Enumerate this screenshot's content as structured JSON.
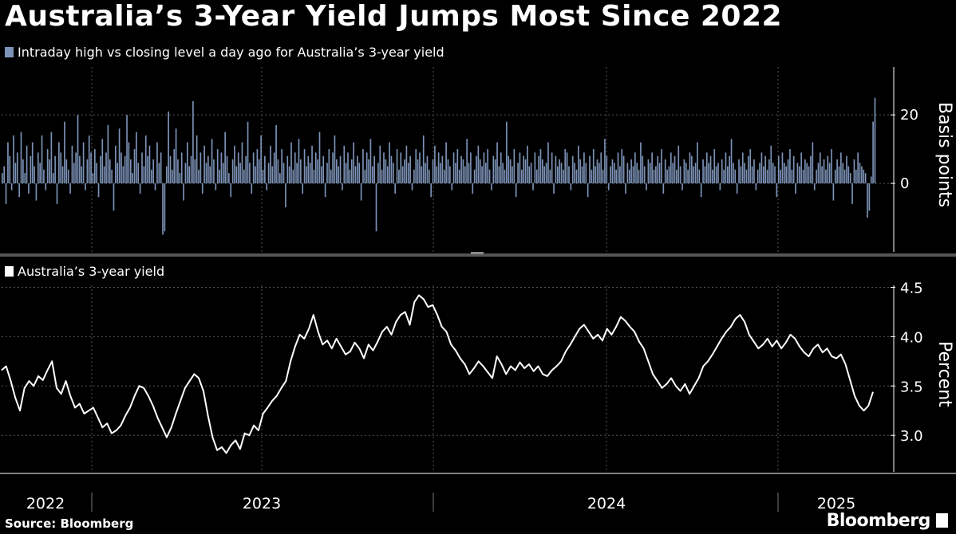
{
  "title": "Australia’s 3-Year Yield Jumps Most Since 2022",
  "source": "Source: Bloomberg",
  "brand": "Bloomberg",
  "colors": {
    "background": "#000000",
    "bars": "#7c93b8",
    "line": "#ffffff",
    "grid": "#555555"
  },
  "chart_data": [
    {
      "type": "bar",
      "legend": "Intraday high vs closing level a day ago for Australia’s 3-year yield",
      "ylabel": "Basis points",
      "yticks": [
        0,
        20
      ],
      "ylim": [
        -20,
        34
      ],
      "grid": true,
      "x_start": "2022-01",
      "x_end": "2025-03",
      "values": [
        3,
        5,
        -6,
        12,
        8,
        -2,
        14,
        6,
        9,
        -4,
        15,
        7,
        3,
        11,
        -3,
        8,
        12,
        5,
        -5,
        9,
        6,
        14,
        4,
        -2,
        10,
        7,
        15,
        3,
        8,
        -6,
        12,
        9,
        5,
        18,
        7,
        4,
        -3,
        11,
        6,
        9,
        20,
        8,
        5,
        12,
        -2,
        7,
        14,
        9,
        3,
        10,
        6,
        -4,
        8,
        13,
        5,
        9,
        17,
        7,
        4,
        -8,
        11,
        6,
        16,
        9,
        5,
        8,
        20,
        12,
        7,
        3,
        10,
        15,
        6,
        -3,
        9,
        5,
        14,
        8,
        11,
        4,
        7,
        -2,
        12,
        6,
        9,
        -15,
        -14,
        5,
        21,
        8,
        4,
        10,
        16,
        7,
        3,
        9,
        -5,
        6,
        12,
        5,
        8,
        24,
        7,
        14,
        4,
        9,
        -3,
        11,
        6,
        8,
        5,
        13,
        7,
        -2,
        10,
        4,
        9,
        6,
        15,
        8,
        3,
        -4,
        7,
        11,
        5,
        9,
        6,
        12,
        4,
        8,
        18,
        6,
        -3,
        9,
        5,
        10,
        7,
        14,
        4,
        8,
        -2,
        6,
        11,
        5,
        9,
        17,
        7,
        3,
        10,
        6,
        -7,
        8,
        5,
        12,
        4,
        9,
        6,
        13,
        7,
        -3,
        10,
        5,
        8,
        6,
        11,
        4,
        9,
        7,
        15,
        5,
        8,
        -4,
        6,
        10,
        4,
        9,
        14,
        7,
        5,
        8,
        -2,
        11,
        6,
        9,
        4,
        7,
        12,
        5,
        8,
        6,
        -5,
        10,
        4,
        9,
        7,
        13,
        5,
        8,
        -14,
        6,
        11,
        4,
        9,
        7,
        5,
        12,
        8,
        6,
        -3,
        10,
        4,
        9,
        5,
        7,
        11,
        6,
        8,
        -2,
        4,
        10,
        7,
        9,
        5,
        14,
        6,
        8,
        4,
        -4,
        7,
        11,
        5,
        9,
        6,
        8,
        4,
        12,
        7,
        5,
        -2,
        9,
        6,
        10,
        4,
        8,
        7,
        5,
        13,
        6,
        9,
        -3,
        4,
        8,
        11,
        7,
        5,
        9,
        6,
        10,
        4,
        -2,
        8,
        7,
        12,
        5,
        9,
        6,
        4,
        18,
        8,
        7,
        5,
        10,
        -4,
        6,
        9,
        4,
        8,
        7,
        11,
        5,
        6,
        -2,
        9,
        4,
        8,
        10,
        7,
        5,
        6,
        12,
        4,
        9,
        -3,
        8,
        5,
        7,
        6,
        4,
        10,
        9,
        5,
        -2,
        8,
        6,
        4,
        11,
        7,
        5,
        9,
        6,
        -4,
        8,
        4,
        10,
        5,
        7,
        6,
        9,
        4,
        13,
        8,
        -2,
        5,
        7,
        6,
        4,
        9,
        5,
        10,
        8,
        -3,
        6,
        4,
        7,
        5,
        9,
        6,
        4,
        12,
        8,
        5,
        -2,
        7,
        6,
        9,
        4,
        5,
        8,
        6,
        10,
        -3,
        7,
        4,
        5,
        9,
        6,
        8,
        4,
        11,
        5,
        -2,
        7,
        6,
        4,
        9,
        8,
        5,
        6,
        12,
        4,
        -4,
        7,
        5,
        9,
        6,
        8,
        4,
        10,
        5,
        6,
        -2,
        7,
        4,
        9,
        5,
        8,
        13,
        6,
        4,
        -3,
        7,
        5,
        9,
        6,
        4,
        8,
        10,
        5,
        7,
        -2,
        4,
        6,
        9,
        5,
        8,
        4,
        7,
        11,
        6,
        5,
        -4,
        8,
        4,
        9,
        6,
        5,
        7,
        10,
        4,
        8,
        -3,
        6,
        5,
        9,
        4,
        7,
        6,
        5,
        8,
        12,
        -2,
        4,
        6,
        9,
        5,
        7,
        4,
        8,
        6,
        10,
        -5,
        4,
        7,
        5,
        9,
        6,
        4,
        8,
        5,
        3,
        -6,
        7,
        4,
        9,
        6,
        5,
        4,
        3,
        -10,
        -8,
        2,
        18,
        25
      ]
    },
    {
      "type": "line",
      "legend": "Australia’s 3-year yield",
      "ylabel": "Percent",
      "yticks": [
        3.0,
        3.5,
        4.0,
        4.5
      ],
      "ylim": [
        2.63,
        4.52
      ],
      "grid": true,
      "x_start": "2022-01",
      "x_end": "2025-03",
      "xticks": [
        "2022",
        "2023",
        "2024",
        "2025"
      ],
      "values": [
        3.66,
        3.7,
        3.55,
        3.38,
        3.25,
        3.48,
        3.55,
        3.5,
        3.6,
        3.56,
        3.66,
        3.75,
        3.48,
        3.42,
        3.55,
        3.4,
        3.28,
        3.32,
        3.22,
        3.25,
        3.28,
        3.18,
        3.08,
        3.12,
        3.02,
        3.05,
        3.1,
        3.2,
        3.28,
        3.4,
        3.5,
        3.48,
        3.4,
        3.3,
        3.18,
        3.08,
        2.98,
        3.08,
        3.22,
        3.35,
        3.48,
        3.55,
        3.62,
        3.58,
        3.45,
        3.2,
        2.98,
        2.85,
        2.88,
        2.82,
        2.9,
        2.95,
        2.86,
        3.02,
        3.0,
        3.1,
        3.05,
        3.22,
        3.28,
        3.35,
        3.4,
        3.48,
        3.55,
        3.75,
        3.9,
        4.02,
        3.98,
        4.08,
        4.22,
        4.05,
        3.92,
        3.96,
        3.88,
        3.98,
        3.9,
        3.82,
        3.85,
        3.94,
        3.88,
        3.78,
        3.92,
        3.86,
        3.95,
        4.05,
        4.1,
        4.02,
        4.15,
        4.22,
        4.25,
        4.12,
        4.35,
        4.42,
        4.38,
        4.3,
        4.32,
        4.22,
        4.1,
        4.05,
        3.92,
        3.86,
        3.78,
        3.72,
        3.62,
        3.68,
        3.75,
        3.7,
        3.64,
        3.58,
        3.8,
        3.72,
        3.62,
        3.7,
        3.66,
        3.74,
        3.68,
        3.72,
        3.65,
        3.7,
        3.62,
        3.6,
        3.66,
        3.7,
        3.75,
        3.85,
        3.92,
        4.0,
        4.08,
        4.12,
        4.05,
        3.98,
        4.02,
        3.96,
        4.08,
        4.02,
        4.1,
        4.2,
        4.16,
        4.1,
        4.05,
        3.95,
        3.88,
        3.75,
        3.62,
        3.55,
        3.48,
        3.52,
        3.58,
        3.5,
        3.45,
        3.52,
        3.42,
        3.5,
        3.58,
        3.7,
        3.75,
        3.82,
        3.9,
        3.98,
        4.05,
        4.1,
        4.18,
        4.22,
        4.15,
        4.02,
        3.95,
        3.88,
        3.92,
        3.98,
        3.9,
        3.96,
        3.88,
        3.94,
        4.02,
        3.98,
        3.9,
        3.84,
        3.8,
        3.88,
        3.92,
        3.84,
        3.88,
        3.8,
        3.78,
        3.82,
        3.72,
        3.56,
        3.4,
        3.3,
        3.25,
        3.3,
        3.44
      ]
    }
  ]
}
